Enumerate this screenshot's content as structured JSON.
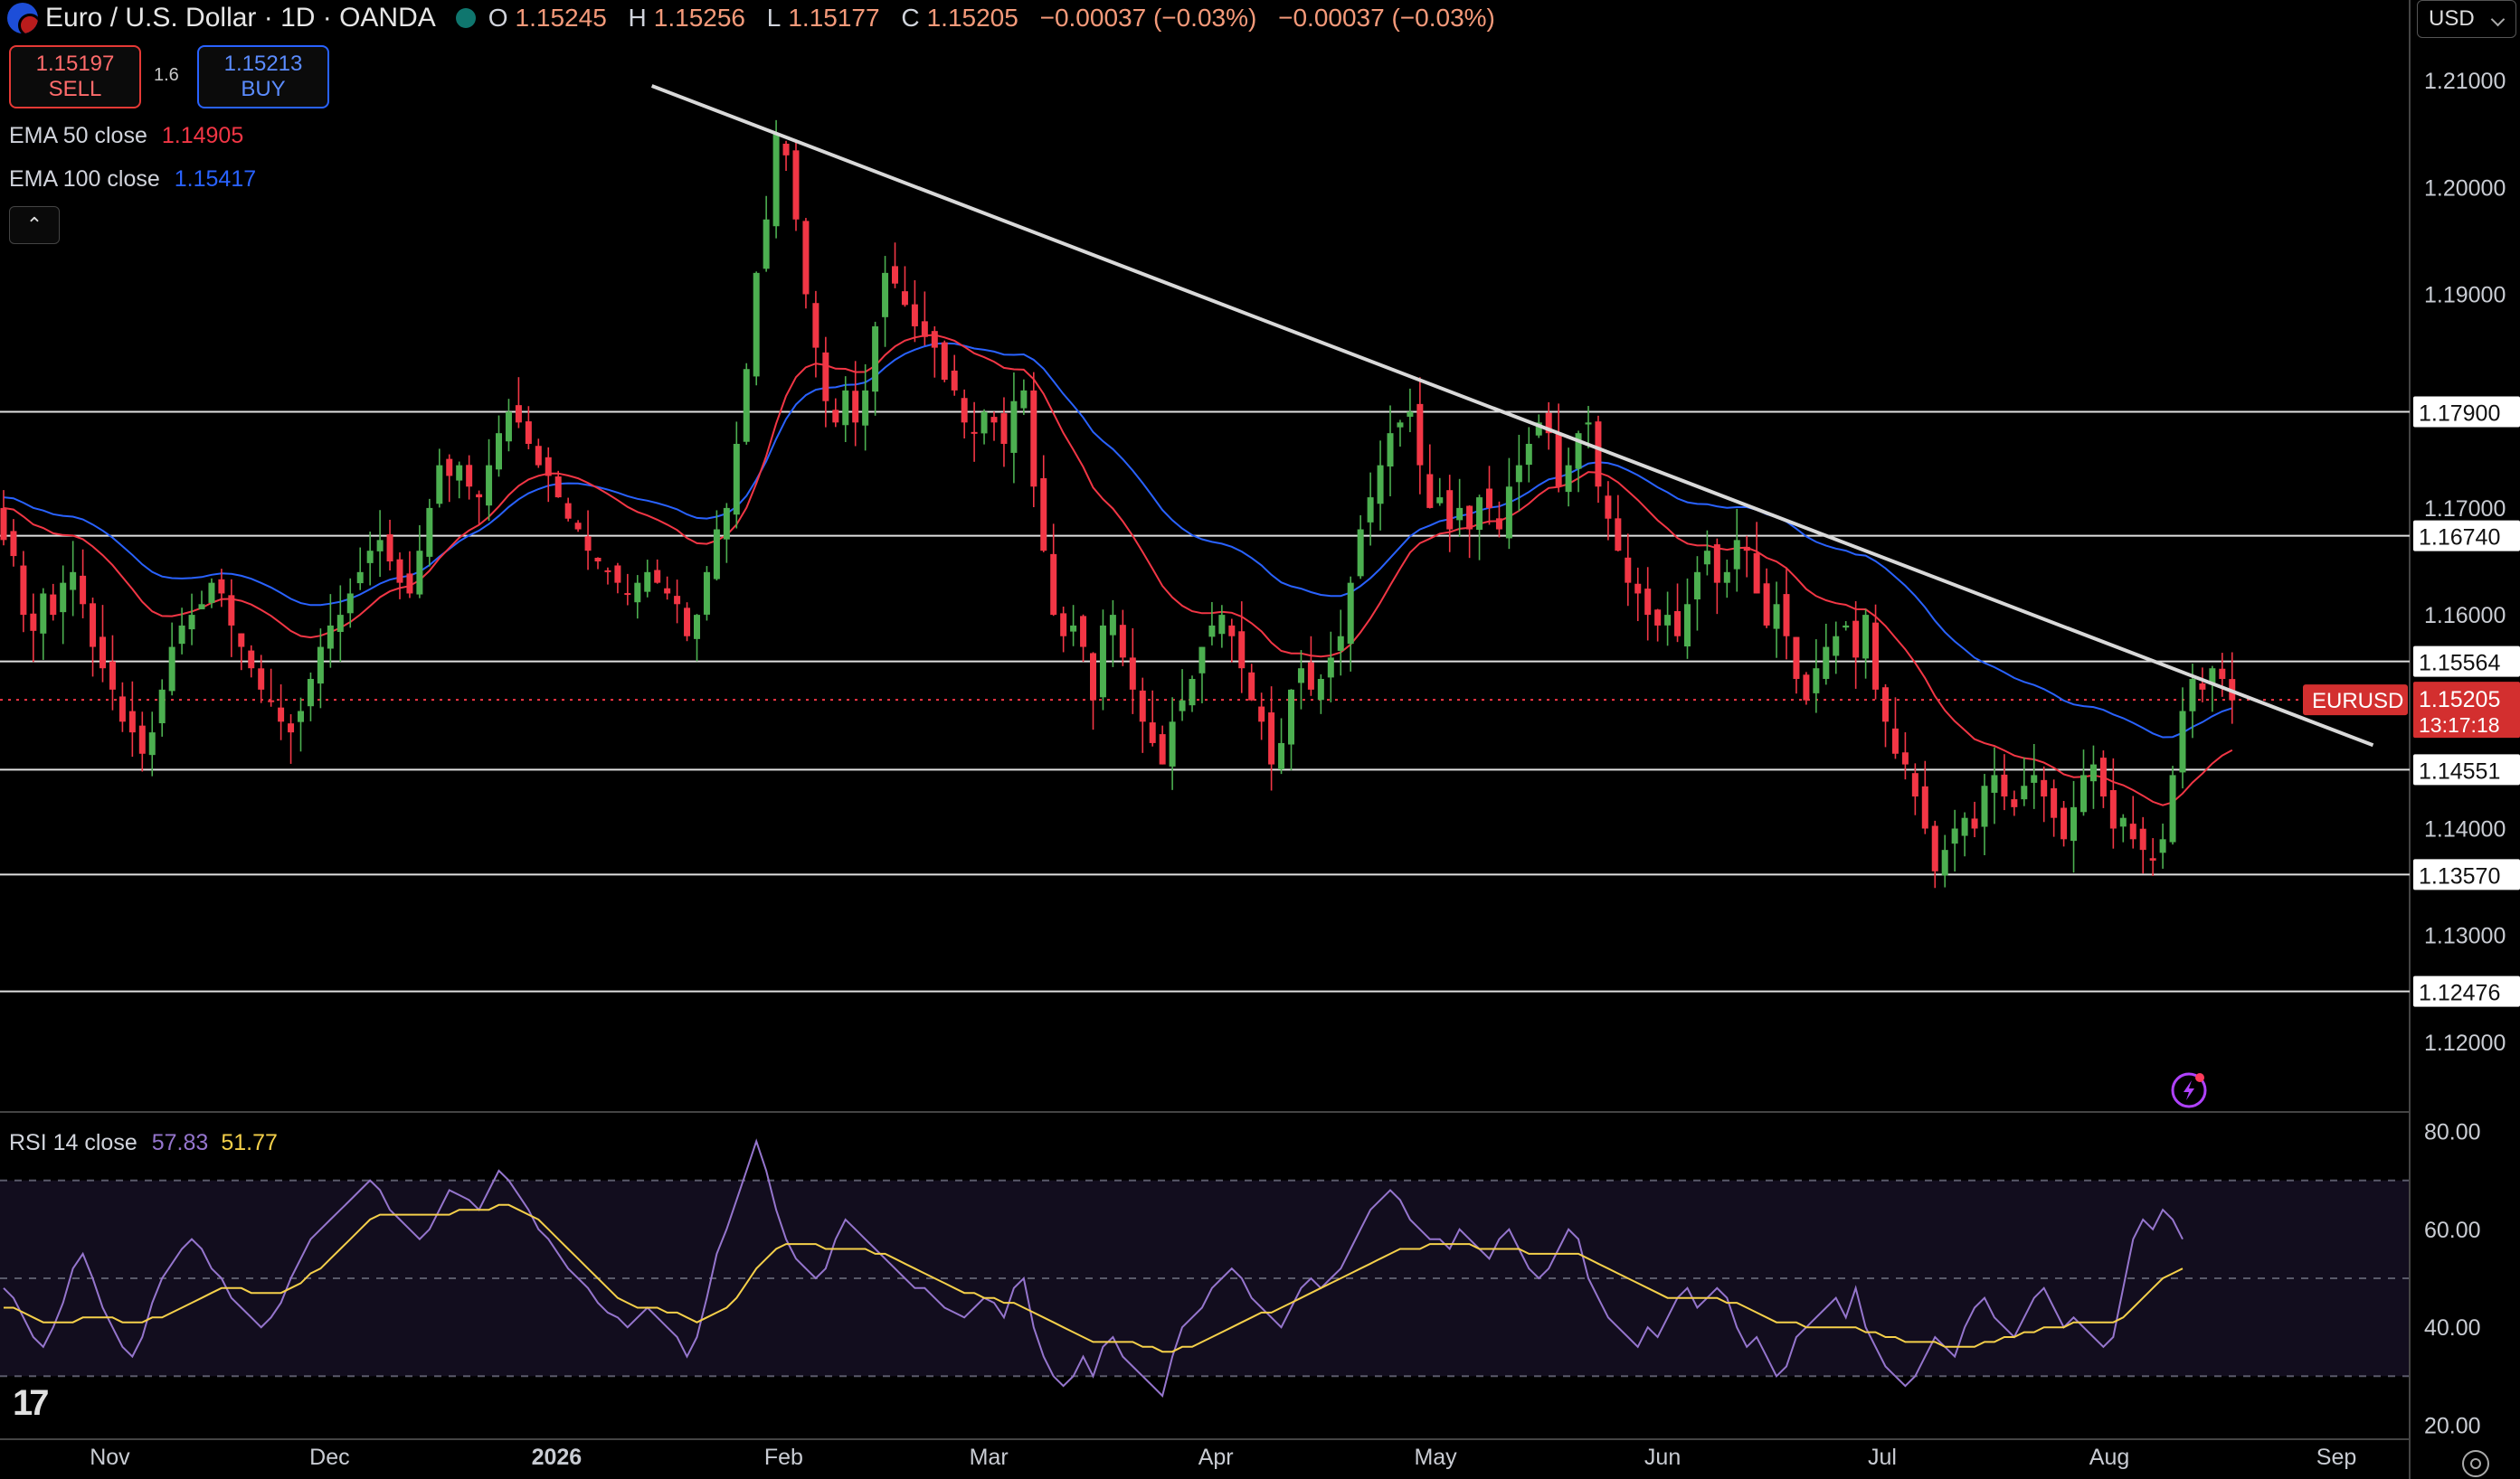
{
  "header": {
    "symbol": "Euro / U.S. Dollar · 1D · OANDA",
    "ohlc": [
      {
        "k": "O",
        "v": "1.15245"
      },
      {
        "k": "H",
        "v": "1.15256"
      },
      {
        "k": "L",
        "v": "1.15177"
      },
      {
        "k": "C",
        "v": "1.15205"
      },
      {
        "k": "",
        "v": "−0.00037 (−0.03%)"
      },
      {
        "k": "",
        "v": "−0.00037 (−0.03%)"
      }
    ]
  },
  "trade": {
    "sell_price": "1.15197",
    "sell_label": "SELL",
    "spread": "1.6",
    "buy_price": "1.15213",
    "buy_label": "BUY"
  },
  "legend": {
    "ema50_label": "EMA 50 close",
    "ema50_value": "1.14905",
    "ema100_label": "EMA 100 close",
    "ema100_value": "1.15417",
    "rsi_label": "RSI 14 close",
    "rsi_value": "57.83",
    "rsi_ma_value": "51.77"
  },
  "currency": "USD",
  "price_tag": {
    "symbol": "EURUSD",
    "price": "1.15205",
    "countdown": "13:17:18"
  },
  "colors": {
    "up": "#4caf50",
    "down": "#f23645",
    "ema50": "#f23645",
    "ema100": "#2962ff",
    "rsi": "#9575cd",
    "rsi_ma": "#f5d04a",
    "trendline": "#d9d9d9",
    "level": "#e0e0e0"
  },
  "icons": [
    "lightning-alert-icon",
    "chevron-up-icon",
    "tradingview-logo-icon",
    "settings-gear-icon",
    "chevron-down-icon"
  ],
  "chart_data": [
    {
      "type": "candlestick",
      "title": "Euro / U.S. Dollar · 1D · OANDA",
      "ylim": [
        1.115,
        1.215
      ],
      "y_ticks": [
        "1.21000",
        "1.20000",
        "1.19000",
        "1.17000",
        "1.16000",
        "1.14000",
        "1.13000",
        "1.12000"
      ],
      "x_ticks": [
        {
          "label": "Nov",
          "day": "2025-11-01"
        },
        {
          "label": "Dec",
          "day": "2025-12-01"
        },
        {
          "label": "2026",
          "day": "2026-01-01"
        },
        {
          "label": "Feb",
          "day": "2026-02-01"
        },
        {
          "label": "Mar",
          "day": "2026-03-01"
        },
        {
          "label": "Apr",
          "day": "2026-04-01"
        },
        {
          "label": "May",
          "day": "2026-05-01"
        },
        {
          "label": "Jun",
          "day": "2026-06-01"
        },
        {
          "label": "Jul",
          "day": "2026-07-01"
        },
        {
          "label": "Aug",
          "day": "2026-08-01"
        },
        {
          "label": "Sep",
          "day": "2026-09-01"
        }
      ],
      "xlim": [
        "2025-10-17",
        "2026-09-11"
      ],
      "horizontal_levels": [
        "1.17900",
        "1.16740",
        "1.15564",
        "1.14551",
        "1.13570",
        "1.12476"
      ],
      "current_price": 1.15205,
      "trendline": [
        {
          "date": "2026-01-14",
          "price": 1.2095
        },
        {
          "date": "2026-09-06",
          "price": 1.1478
        }
      ],
      "candles_close": [
        1.167,
        1.1655,
        1.16,
        1.1585,
        1.162,
        1.16,
        1.163,
        1.164,
        1.161,
        1.157,
        1.155,
        1.153,
        1.15,
        1.149,
        1.147,
        1.149,
        1.153,
        1.157,
        1.159,
        1.16,
        1.161,
        1.163,
        1.162,
        1.159,
        1.157,
        1.155,
        1.153,
        1.152,
        1.15,
        1.149,
        1.151,
        1.154,
        1.157,
        1.159,
        1.16,
        1.162,
        1.164,
        1.166,
        1.167,
        1.165,
        1.163,
        1.162,
        1.166,
        1.17,
        1.174,
        1.173,
        1.174,
        1.172,
        1.171,
        1.174,
        1.177,
        1.179,
        1.178,
        1.176,
        1.174,
        1.173,
        1.171,
        1.169,
        1.168,
        1.166,
        1.165,
        1.164,
        1.163,
        1.162,
        1.163,
        1.164,
        1.163,
        1.162,
        1.161,
        1.158,
        1.16,
        1.164,
        1.168,
        1.17,
        1.176,
        1.183,
        1.192,
        1.197,
        1.205,
        1.203,
        1.197,
        1.19,
        1.185,
        1.18,
        1.178,
        1.181,
        1.178,
        1.181,
        1.187,
        1.192,
        1.191,
        1.189,
        1.187,
        1.186,
        1.185,
        1.182,
        1.181,
        1.178,
        1.177,
        1.179,
        1.178,
        1.176,
        1.18,
        1.181,
        1.172,
        1.166,
        1.16,
        1.158,
        1.159,
        1.157,
        1.152,
        1.159,
        1.16,
        1.156,
        1.153,
        1.15,
        1.148,
        1.146,
        1.15,
        1.152,
        1.154,
        1.157,
        1.159,
        1.16,
        1.158,
        1.155,
        1.152,
        1.15,
        1.146,
        1.148,
        1.153,
        1.155,
        1.153,
        1.154,
        1.156,
        1.158,
        1.163,
        1.168,
        1.171,
        1.174,
        1.177,
        1.178,
        1.179,
        1.174,
        1.17,
        1.171,
        1.168,
        1.17,
        1.168,
        1.171,
        1.17,
        1.168,
        1.172,
        1.174,
        1.176,
        1.178,
        1.177,
        1.172,
        1.174,
        1.177,
        1.178,
        1.172,
        1.169,
        1.166,
        1.163,
        1.162,
        1.16,
        1.159,
        1.16,
        1.158,
        1.161,
        1.164,
        1.166,
        1.163,
        1.164,
        1.167,
        1.166,
        1.162,
        1.159,
        1.161,
        1.158,
        1.154,
        1.152,
        1.155,
        1.157,
        1.158,
        1.159,
        1.156,
        1.16,
        1.153,
        1.15,
        1.147,
        1.146,
        1.143,
        1.14,
        1.136,
        1.138,
        1.14,
        1.141,
        1.14,
        1.144,
        1.145,
        1.143,
        1.142,
        1.144,
        1.145,
        1.143,
        1.141,
        1.139,
        1.142,
        1.145,
        1.146,
        1.143,
        1.14,
        1.141,
        1.139,
        1.138,
        1.137,
        1.139,
        1.145,
        1.151,
        1.154,
        1.153,
        1.155,
        1.154,
        1.152
      ]
    },
    {
      "type": "line",
      "title": "RSI 14 close",
      "ylim": [
        17.5,
        82.5
      ],
      "y_ticks": [
        "80.00",
        "60.00",
        "40.00",
        "20.00"
      ],
      "bands": [
        70,
        50,
        30
      ],
      "series": [
        {
          "name": "RSI",
          "values": [
            48,
            46,
            42,
            38,
            36,
            40,
            45,
            52,
            55,
            50,
            44,
            40,
            36,
            34,
            38,
            45,
            50,
            53,
            56,
            58,
            56,
            52,
            50,
            46,
            44,
            42,
            40,
            42,
            45,
            50,
            54,
            58,
            60,
            62,
            64,
            66,
            68,
            70,
            68,
            64,
            62,
            60,
            58,
            60,
            64,
            68,
            67,
            66,
            64,
            68,
            72,
            70,
            67,
            64,
            60,
            58,
            55,
            52,
            50,
            48,
            45,
            43,
            42,
            40,
            42,
            44,
            42,
            40,
            38,
            34,
            38,
            46,
            55,
            60,
            66,
            72,
            78,
            72,
            64,
            58,
            54,
            52,
            50,
            52,
            58,
            62,
            60,
            58,
            56,
            54,
            52,
            50,
            48,
            48,
            46,
            44,
            43,
            42,
            44,
            46,
            45,
            42,
            48,
            50,
            40,
            34,
            30,
            28,
            30,
            34,
            30,
            36,
            38,
            34,
            32,
            30,
            28,
            26,
            34,
            40,
            42,
            44,
            48,
            50,
            52,
            50,
            46,
            44,
            42,
            40,
            44,
            48,
            50,
            48,
            50,
            52,
            56,
            60,
            64,
            66,
            68,
            66,
            62,
            60,
            58,
            58,
            56,
            60,
            58,
            56,
            54,
            58,
            60,
            56,
            52,
            50,
            52,
            56,
            60,
            58,
            50,
            46,
            42,
            40,
            38,
            36,
            40,
            38,
            42,
            46,
            48,
            44,
            46,
            48,
            46,
            40,
            36,
            38,
            34,
            30,
            32,
            38,
            40,
            42,
            44,
            46,
            42,
            48,
            40,
            36,
            32,
            30,
            28,
            30,
            34,
            38,
            36,
            34,
            40,
            44,
            46,
            42,
            40,
            38,
            42,
            46,
            48,
            44,
            40,
            42,
            40,
            38,
            36,
            38,
            48,
            58,
            62,
            60,
            64,
            62,
            58
          ]
        },
        {
          "name": "RSI MA",
          "values": [
            44,
            44,
            43,
            42,
            41,
            41,
            41,
            41,
            42,
            42,
            42,
            42,
            41,
            41,
            41,
            42,
            42,
            43,
            44,
            45,
            46,
            47,
            48,
            48,
            48,
            47,
            47,
            47,
            47,
            48,
            49,
            51,
            52,
            54,
            56,
            58,
            60,
            62,
            63,
            63,
            63,
            63,
            63,
            63,
            63,
            63,
            64,
            64,
            64,
            64,
            65,
            65,
            64,
            63,
            62,
            60,
            58,
            56,
            54,
            52,
            50,
            48,
            46,
            45,
            44,
            44,
            44,
            43,
            43,
            42,
            41,
            42,
            43,
            44,
            46,
            49,
            52,
            54,
            56,
            57,
            57,
            57,
            57,
            56,
            56,
            56,
            56,
            56,
            55,
            55,
            54,
            53,
            52,
            51,
            50,
            49,
            48,
            47,
            47,
            46,
            46,
            45,
            45,
            44,
            43,
            42,
            41,
            40,
            39,
            38,
            37,
            37,
            37,
            37,
            37,
            36,
            36,
            35,
            35,
            36,
            36,
            37,
            38,
            39,
            40,
            41,
            42,
            43,
            43,
            44,
            45,
            46,
            47,
            48,
            49,
            50,
            51,
            52,
            53,
            54,
            55,
            56,
            56,
            56,
            57,
            57,
            57,
            57,
            57,
            56,
            56,
            56,
            56,
            56,
            55,
            55,
            55,
            55,
            55,
            55,
            54,
            53,
            52,
            51,
            50,
            49,
            48,
            47,
            46,
            46,
            46,
            46,
            46,
            46,
            45,
            45,
            44,
            43,
            42,
            41,
            41,
            41,
            40,
            40,
            40,
            40,
            40,
            40,
            39,
            39,
            38,
            38,
            37,
            37,
            37,
            37,
            36,
            36,
            36,
            36,
            37,
            37,
            38,
            38,
            39,
            39,
            40,
            40,
            40,
            41,
            41,
            41,
            41,
            41,
            42,
            44,
            46,
            48,
            50,
            51,
            52
          ]
        }
      ]
    }
  ]
}
